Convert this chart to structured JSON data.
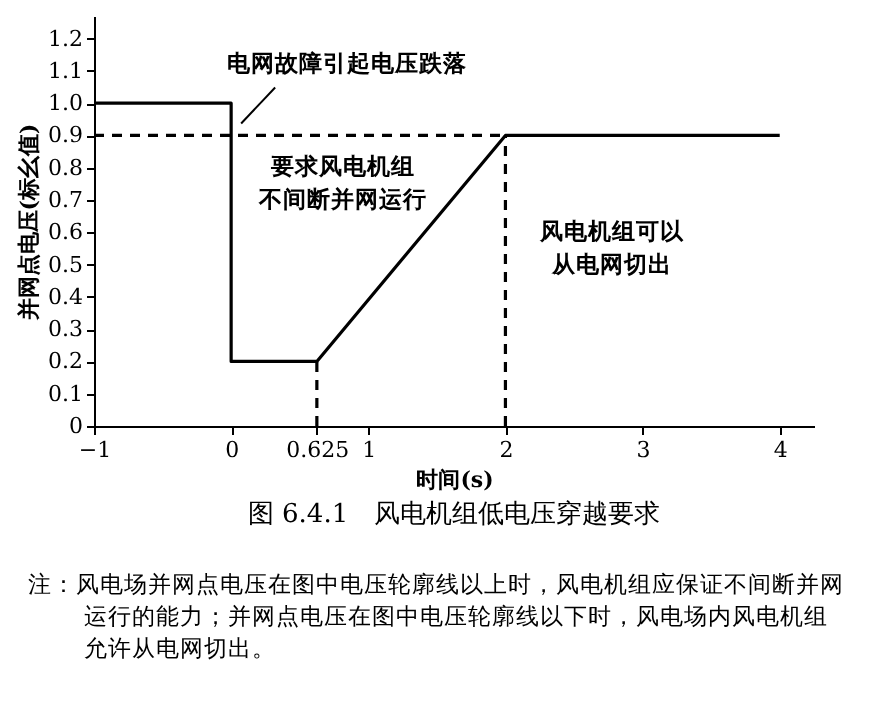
{
  "chart_data": {
    "type": "line",
    "title": "图 6.4.1　风电机组低电压穿越要求",
    "xlabel": "时间(s)",
    "ylabel": "并网点电压(标幺值)",
    "xlim": [
      -1,
      4.25
    ],
    "ylim": [
      0,
      1.27
    ],
    "xticks": [
      {
        "value": -1,
        "label": "−1"
      },
      0,
      0.625,
      1,
      2,
      3,
      4
    ],
    "yticks": [
      0,
      0.1,
      0.2,
      0.3,
      0.4,
      0.5,
      0.6,
      0.7,
      0.8,
      0.9,
      {
        "value": 1,
        "label": "1.0"
      },
      1.1,
      1.2
    ],
    "grid": false,
    "legend": false,
    "marker": "none",
    "series": [
      {
        "color": "#000000",
        "line_style": "solid",
        "x": [
          -1,
          0,
          0,
          0.625,
          2,
          4
        ],
        "values": [
          1,
          1,
          0.2,
          0.2,
          0.9,
          0.9
        ]
      },
      {
        "color": "#000000",
        "line_style": "dashed",
        "x": [
          -1,
          2
        ],
        "values": [
          0.9,
          0.9
        ]
      },
      {
        "color": "#000000",
        "line_style": "dashed",
        "x": [
          0.625,
          0.625
        ],
        "values": [
          0,
          0.2
        ]
      },
      {
        "color": "#000000",
        "line_style": "dashed",
        "x": [
          2,
          2
        ],
        "values": [
          0,
          0.9
        ]
      }
    ],
    "annotations": [
      {
        "text": "电网故障引起电压跌落",
        "x": 0,
        "y": 0.9
      },
      "要求风电机组",
      "不间断并网运行",
      "风电机组可以",
      "从电网切出",
      "注：风电场并网点电压在图中电压轮廓线以上时，风电机组应保证不间断并网运行的能力；并网点电压在图中电压轮廓线以下时，风电场内风电机组允许从电网切出。"
    ]
  }
}
